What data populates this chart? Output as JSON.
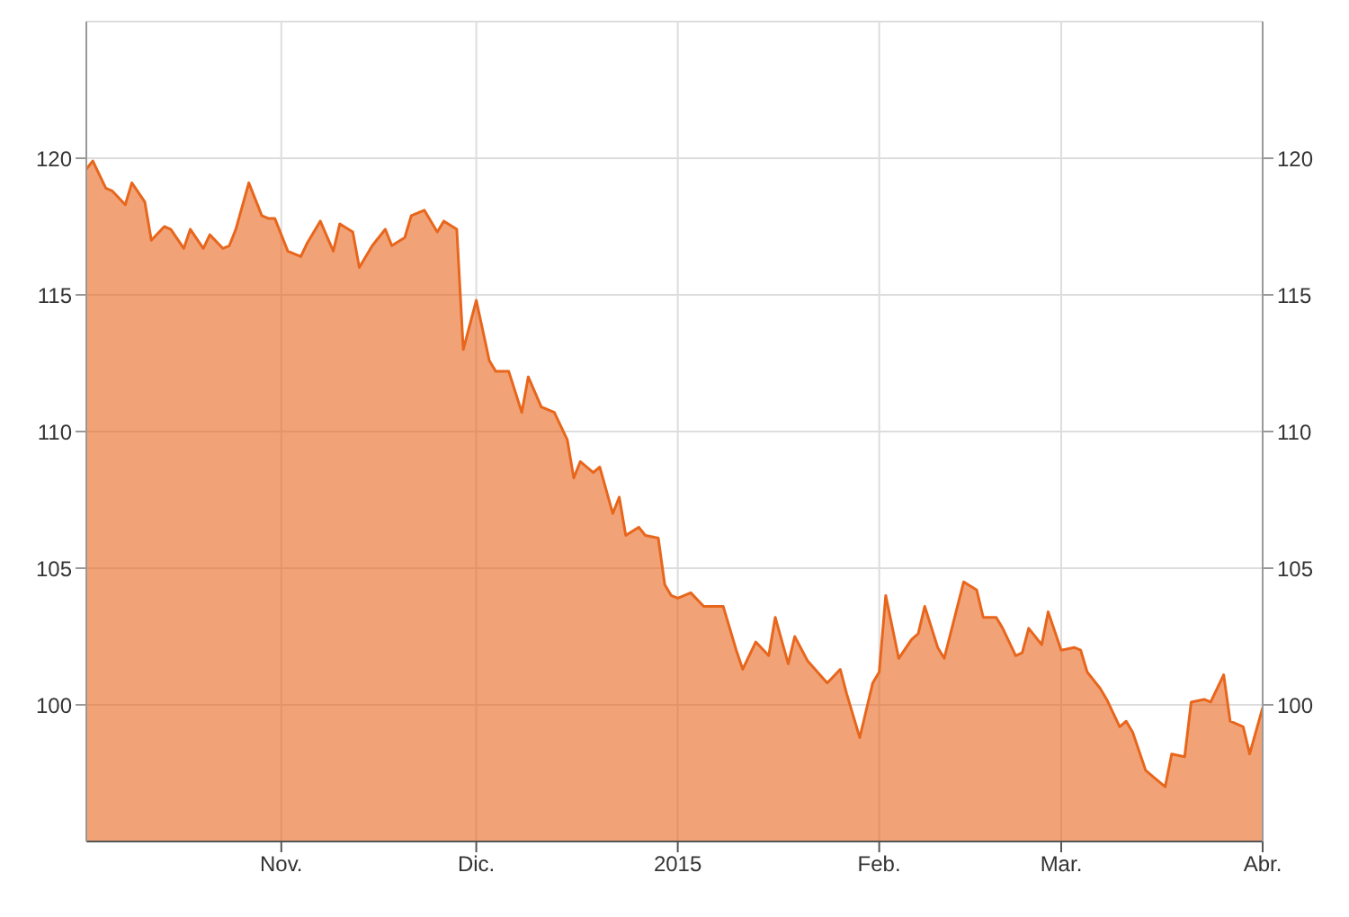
{
  "chart_data": {
    "type": "area",
    "x": [
      "2014-10-02",
      "2014-10-03",
      "2014-10-05",
      "2014-10-06",
      "2014-10-08",
      "2014-10-09",
      "2014-10-11",
      "2014-10-12",
      "2014-10-14",
      "2014-10-15",
      "2014-10-17",
      "2014-10-18",
      "2014-10-20",
      "2014-10-21",
      "2014-10-23",
      "2014-10-24",
      "2014-10-25",
      "2014-10-27",
      "2014-10-29",
      "2014-10-30",
      "2014-10-31",
      "2014-11-02",
      "2014-11-04",
      "2014-11-05",
      "2014-11-07",
      "2014-11-09",
      "2014-11-10",
      "2014-11-12",
      "2014-11-13",
      "2014-11-15",
      "2014-11-17",
      "2014-11-18",
      "2014-11-20",
      "2014-11-21",
      "2014-11-23",
      "2014-11-25",
      "2014-11-26",
      "2014-11-28",
      "2014-11-29",
      "2014-12-01",
      "2014-12-03",
      "2014-12-04",
      "2014-12-06",
      "2014-12-08",
      "2014-12-09",
      "2014-12-11",
      "2014-12-13",
      "2014-12-15",
      "2014-12-16",
      "2014-12-17",
      "2014-12-19",
      "2014-12-20",
      "2014-12-22",
      "2014-12-23",
      "2014-12-24",
      "2014-12-26",
      "2014-12-27",
      "2014-12-29",
      "2014-12-30",
      "2014-12-31",
      "2015-01-01",
      "2015-01-03",
      "2015-01-05",
      "2015-01-08",
      "2015-01-10",
      "2015-01-11",
      "2015-01-13",
      "2015-01-15",
      "2015-01-16",
      "2015-01-18",
      "2015-01-19",
      "2015-01-21",
      "2015-01-24",
      "2015-01-26",
      "2015-01-27",
      "2015-01-29",
      "2015-01-31",
      "2015-02-01",
      "2015-02-02",
      "2015-02-04",
      "2015-02-06",
      "2015-02-07",
      "2015-02-08",
      "2015-02-10",
      "2015-02-11",
      "2015-02-14",
      "2015-02-16",
      "2015-02-17",
      "2015-02-19",
      "2015-02-20",
      "2015-02-22",
      "2015-02-23",
      "2015-02-24",
      "2015-02-26",
      "2015-02-27",
      "2015-03-01",
      "2015-03-03",
      "2015-03-04",
      "2015-03-05",
      "2015-03-07",
      "2015-03-08",
      "2015-03-10",
      "2015-03-11",
      "2015-03-12",
      "2015-03-14",
      "2015-03-15",
      "2015-03-17",
      "2015-03-18",
      "2015-03-20",
      "2015-03-21",
      "2015-03-23",
      "2015-03-24",
      "2015-03-26",
      "2015-03-27",
      "2015-03-29",
      "2015-03-30",
      "2015-04-01"
    ],
    "series": [
      {
        "color": "#e8661c",
        "values": [
          119.6,
          119.9,
          118.9,
          118.8,
          118.3,
          119.1,
          118.4,
          117.0,
          117.5,
          117.4,
          116.7,
          117.4,
          116.7,
          117.2,
          116.7,
          116.8,
          117.4,
          119.1,
          117.9,
          117.8,
          117.8,
          116.6,
          116.4,
          116.9,
          117.7,
          116.6,
          117.6,
          117.3,
          116.0,
          116.8,
          117.4,
          116.8,
          117.1,
          117.9,
          118.1,
          117.3,
          117.7,
          117.4,
          113.0,
          114.8,
          112.6,
          112.2,
          112.2,
          110.7,
          112.0,
          110.9,
          110.7,
          109.7,
          108.3,
          108.9,
          108.5,
          108.7,
          107.0,
          107.6,
          106.2,
          106.5,
          106.2,
          106.1,
          104.4,
          104.0,
          103.9,
          104.1,
          103.6,
          103.6,
          102.0,
          101.3,
          102.3,
          101.8,
          103.2,
          101.5,
          102.5,
          101.6,
          100.8,
          101.3,
          100.4,
          98.8,
          100.8,
          101.2,
          104.0,
          101.7,
          102.4,
          102.6,
          103.6,
          102.1,
          101.7,
          104.5,
          104.2,
          103.2,
          103.2,
          102.8,
          101.8,
          101.9,
          102.8,
          102.2,
          103.4,
          102.0,
          102.1,
          102.0,
          101.2,
          100.6,
          100.2,
          99.2,
          99.4,
          99.0,
          97.6,
          97.4,
          97.0,
          98.2,
          98.1,
          100.1,
          100.2,
          100.1,
          101.1,
          99.4,
          99.2,
          98.2,
          99.9
        ]
      }
    ],
    "xlim": [
      "2014-10-02",
      "2015-04-01"
    ],
    "xticks": [
      {
        "value": "2014-11-01",
        "label": "Nov."
      },
      {
        "value": "2014-12-01",
        "label": "Dic."
      },
      {
        "value": "2015-01-01",
        "label": "2015"
      },
      {
        "value": "2015-02-01",
        "label": "Feb."
      },
      {
        "value": "2015-03-01",
        "label": "Mar."
      },
      {
        "value": "2015-04-01",
        "label": "Abr."
      }
    ],
    "ylim": [
      95,
      125
    ],
    "yticks": [
      100,
      105,
      110,
      115,
      120
    ],
    "y2lim": [
      95,
      125
    ],
    "y2ticks": [
      100,
      105,
      110,
      115,
      120
    ],
    "grid": true,
    "legend": false
  }
}
